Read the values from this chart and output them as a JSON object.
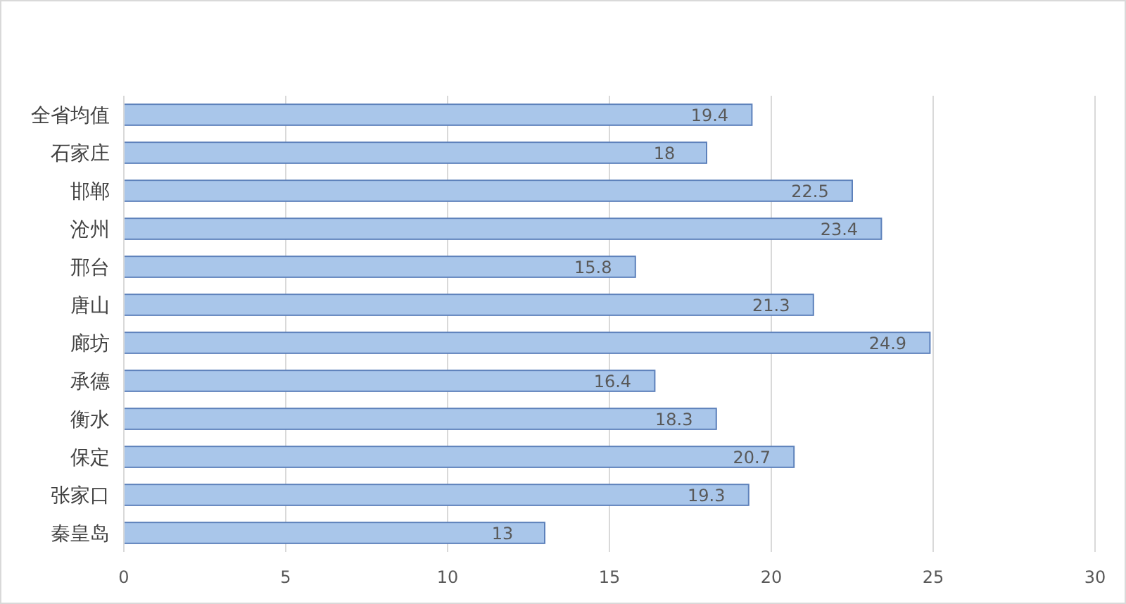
{
  "chart_data": {
    "type": "bar",
    "orientation": "horizontal",
    "categories": [
      "全省均值",
      "石家庄",
      "邯郸",
      "沧州",
      "邢台",
      "唐山",
      "廊坊",
      "承德",
      "衡水",
      "保定",
      "张家口",
      "秦皇岛"
    ],
    "values": [
      19.4,
      18,
      22.5,
      23.4,
      15.8,
      21.3,
      24.9,
      16.4,
      18.3,
      20.7,
      19.3,
      13
    ],
    "color": "#a9c6ea",
    "xlim": [
      0,
      30
    ],
    "xticks": [
      0,
      5,
      10,
      15,
      20,
      25,
      30
    ],
    "grid": "x",
    "data_labels": true
  }
}
